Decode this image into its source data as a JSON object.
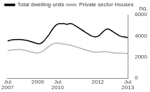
{
  "chart_data": {
    "type": "line",
    "y_label": "no.",
    "categories": [
      "Jul 2007",
      null,
      null,
      null,
      null,
      null,
      null,
      null,
      null,
      null,
      null,
      null,
      null,
      null,
      null,
      null,
      null,
      null,
      "2009",
      null,
      null,
      null,
      null,
      null,
      null,
      null,
      null,
      null,
      null,
      null,
      "Jul 2010",
      null,
      null,
      null,
      null,
      null,
      null,
      null,
      null,
      null,
      null,
      null,
      null,
      null,
      null,
      null,
      null,
      null,
      null,
      null,
      null,
      null,
      null,
      null,
      "2012",
      null,
      null,
      null,
      null,
      null,
      null,
      null,
      null,
      null,
      null,
      null,
      null,
      null,
      null,
      null,
      null,
      null,
      "Jul 2013"
    ],
    "series": [
      {
        "name": "Total dwelling units",
        "color": "#000000",
        "values": [
          3500,
          3550,
          3600,
          3620,
          3630,
          3640,
          3650,
          3650,
          3640,
          3620,
          3600,
          3580,
          3550,
          3500,
          3450,
          3400,
          3350,
          3300,
          3250,
          3250,
          3300,
          3400,
          3550,
          3750,
          3950,
          4150,
          4400,
          4650,
          4850,
          5000,
          5100,
          5150,
          5150,
          5150,
          5150,
          5100,
          5100,
          5150,
          5150,
          5100,
          5000,
          4900,
          4800,
          4700,
          4600,
          4500,
          4400,
          4300,
          4200,
          4100,
          4000,
          3950,
          3900,
          3900,
          3950,
          4050,
          4200,
          4350,
          4500,
          4600,
          4650,
          4600,
          4500,
          4400,
          4300,
          4200,
          4100,
          4000,
          3950,
          3900,
          3900,
          3850,
          3850
        ]
      },
      {
        "name": "Private sector Houses",
        "color": "#b4b4b4",
        "values": [
          2600,
          2620,
          2650,
          2670,
          2680,
          2690,
          2700,
          2700,
          2690,
          2670,
          2640,
          2600,
          2560,
          2520,
          2480,
          2440,
          2400,
          2380,
          2380,
          2400,
          2460,
          2550,
          2650,
          2780,
          2900,
          3020,
          3130,
          3220,
          3280,
          3300,
          3300,
          3280,
          3250,
          3220,
          3200,
          3180,
          3160,
          3130,
          3100,
          3050,
          3000,
          2950,
          2900,
          2850,
          2800,
          2750,
          2700,
          2650,
          2600,
          2550,
          2500,
          2480,
          2460,
          2450,
          2450,
          2460,
          2480,
          2500,
          2510,
          2500,
          2480,
          2450,
          2420,
          2400,
          2380,
          2370,
          2360,
          2350,
          2350,
          2340,
          2340,
          2330,
          2330
        ]
      }
    ],
    "ylim": [
      0,
      6000
    ],
    "yticks": [
      0,
      2000,
      4000,
      6000
    ],
    "grid": false,
    "legend": "top-left"
  }
}
